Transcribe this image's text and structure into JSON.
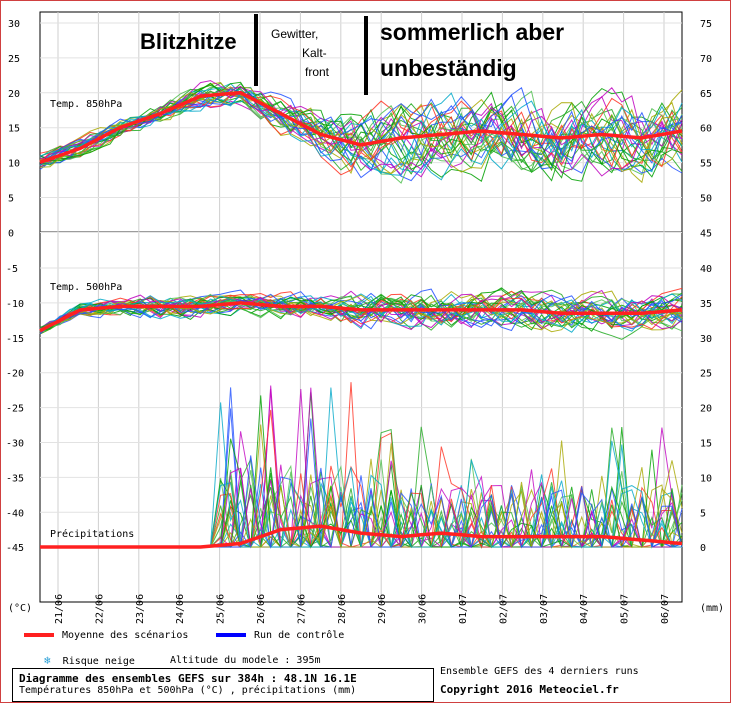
{
  "chart_data": {
    "type": "line",
    "dates": [
      "21/06",
      "22/06",
      "23/06",
      "24/06",
      "25/06",
      "26/06",
      "27/06",
      "28/06",
      "29/06",
      "30/06",
      "01/07",
      "02/07",
      "03/07",
      "04/07",
      "05/07",
      "06/07"
    ],
    "y_left_top": [
      "30",
      "25",
      "20",
      "15",
      "10",
      "5",
      "0"
    ],
    "y_left_mid": [
      "-5",
      "-10",
      "-15",
      "-20",
      "-25",
      "-30",
      "-35",
      "-40",
      "-45"
    ],
    "y_right_top": [
      "75",
      "70",
      "65",
      "60",
      "55",
      "50",
      "45"
    ],
    "y_right_mid": [
      "40",
      "35",
      "30",
      "25",
      "20",
      "15",
      "10",
      "5",
      "0"
    ],
    "unit_left": "(°C)",
    "unit_right": "(mm)",
    "panels": {
      "t850": {
        "label": "Temp. 850hPa",
        "ylim": [
          0,
          30
        ],
        "mean": [
          10,
          12,
          15,
          17,
          19.5,
          20,
          17,
          14,
          12.5,
          13.5,
          14,
          14.5,
          14,
          13.5,
          14,
          13.5,
          14.5
        ],
        "spread_top": [
          1.5,
          1.5,
          1.5,
          1.5,
          2,
          2,
          3,
          4,
          5,
          6,
          6,
          6,
          6,
          6,
          6,
          6,
          6
        ],
        "spread_bottom": [
          1,
          1,
          1,
          1,
          1.5,
          1.5,
          2,
          3.5,
          4.5,
          5,
          5,
          5,
          5,
          5,
          5,
          5,
          5
        ]
      },
      "t500": {
        "label": "Temp. 500hPa",
        "ylim": [
          -20,
          -5
        ],
        "mean": [
          -14,
          -11,
          -10.5,
          -10.5,
          -10.5,
          -10,
          -10.5,
          -10.5,
          -11,
          -11,
          -11,
          -11,
          -11,
          -11.5,
          -11.5,
          -11.5,
          -11
        ],
        "spread": [
          0.8,
          1,
          1.5,
          2,
          2,
          1.5,
          2,
          2,
          3,
          3,
          3,
          3,
          3,
          3,
          3,
          3,
          3
        ]
      },
      "precip": {
        "label": "Précipitations",
        "ylim": [
          0,
          25
        ],
        "mean": [
          0,
          0,
          0,
          0,
          0,
          0.5,
          2.5,
          3,
          2,
          1.5,
          2,
          1.5,
          1.5,
          1.5,
          1.5,
          1,
          0.5
        ]
      }
    },
    "annotations": {
      "phase1": "Blitzhitze",
      "phase2_line1": "Gewitter,",
      "phase2_line2": "Kalt-",
      "phase2_line3": "front",
      "phase3_line1": "sommerlich aber",
      "phase3_line2": "unbeständig"
    },
    "series_colors": [
      "#00a000",
      "#22aa22",
      "#c000c0",
      "#a8a800",
      "#00a8c8",
      "#2050ff",
      "#ff3020",
      "#50c050"
    ],
    "mean_color": "#ff2020",
    "control_color": "#0000ff"
  },
  "legend": {
    "mean_label": "Moyenne des scénarios",
    "control_label": "Run de contrôle",
    "snow_icon": "snowflake-icon",
    "snow_label": "Risque neige",
    "altitude": "Altitude du modele : 395m"
  },
  "footer": {
    "line1": "Diagramme des ensembles GEFS sur 384h : 48.1N 16.1E",
    "line2": "Températures 850hPa et 500hPa (°C) , précipitations (mm)",
    "right1": "Ensemble GEFS des 4 derniers runs",
    "right2": "Copyright 2016 Meteociel.fr"
  }
}
